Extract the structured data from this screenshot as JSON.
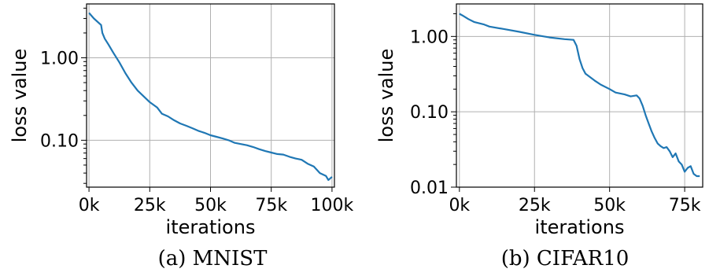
{
  "chart_data": [
    {
      "type": "line",
      "caption": "(a) MNIST",
      "xlabel": "iterations",
      "ylabel": "loss value",
      "yscale": "log",
      "grid": true,
      "xlim": [
        -1000,
        101000
      ],
      "ylim": [
        0.027,
        4.5
      ],
      "xticks": [
        0,
        25000,
        50000,
        75000,
        100000
      ],
      "xtick_labels": [
        "0k",
        "25k",
        "50k",
        "75k",
        "100k"
      ],
      "yticks": [
        1.0,
        0.1
      ],
      "ytick_labels": [
        "1.00",
        "0.10"
      ],
      "series": [
        {
          "color": "#1f77b4",
          "x": [
            0,
            2000,
            5000,
            5500,
            6500,
            8000,
            10000,
            12500,
            15000,
            17500,
            20000,
            22500,
            25000,
            28000,
            30000,
            32500,
            35000,
            37500,
            40000,
            42500,
            45000,
            47500,
            50000,
            52500,
            55000,
            57500,
            60000,
            62500,
            65000,
            67500,
            70000,
            72500,
            75000,
            77500,
            80000,
            82500,
            85000,
            87500,
            90000,
            92500,
            95000,
            97500,
            98500,
            100000
          ],
          "y": [
            3.5,
            3.0,
            2.5,
            2.0,
            1.7,
            1.45,
            1.15,
            0.88,
            0.65,
            0.5,
            0.4,
            0.34,
            0.29,
            0.25,
            0.21,
            0.195,
            0.175,
            0.16,
            0.15,
            0.14,
            0.13,
            0.123,
            0.115,
            0.11,
            0.105,
            0.1,
            0.093,
            0.09,
            0.087,
            0.083,
            0.078,
            0.074,
            0.071,
            0.068,
            0.067,
            0.063,
            0.06,
            0.058,
            0.052,
            0.048,
            0.04,
            0.037,
            0.033,
            0.036
          ]
        }
      ]
    },
    {
      "type": "line",
      "caption": "(b) CIFAR10",
      "xlabel": "iterations",
      "ylabel": "loss value",
      "yscale": "log",
      "grid": true,
      "xlim": [
        -1000,
        81000
      ],
      "ylim": [
        0.01,
        2.7
      ],
      "xticks": [
        0,
        25000,
        50000,
        75000
      ],
      "xtick_labels": [
        "0k",
        "25k",
        "50k",
        "75k"
      ],
      "yticks": [
        1.0,
        0.1,
        0.01
      ],
      "ytick_labels": [
        "1.00",
        "0.10",
        "0.01"
      ],
      "series": [
        {
          "color": "#1f77b4",
          "x": [
            0,
            1000,
            3000,
            5000,
            8000,
            10000,
            15000,
            20000,
            25000,
            30000,
            35000,
            38000,
            39000,
            40000,
            41000,
            42000,
            45000,
            47000,
            50000,
            52000,
            55000,
            57000,
            59000,
            60000,
            61000,
            62000,
            63000,
            64000,
            65000,
            66000,
            67000,
            68000,
            69000,
            70000,
            71000,
            72000,
            73000,
            74000,
            75000,
            76000,
            77000,
            78000,
            79000,
            80000
          ],
          "y": [
            2.0,
            1.9,
            1.7,
            1.55,
            1.45,
            1.35,
            1.25,
            1.15,
            1.05,
            0.97,
            0.92,
            0.9,
            0.75,
            0.5,
            0.38,
            0.32,
            0.26,
            0.23,
            0.2,
            0.18,
            0.17,
            0.16,
            0.165,
            0.15,
            0.12,
            0.09,
            0.07,
            0.055,
            0.045,
            0.038,
            0.035,
            0.033,
            0.034,
            0.03,
            0.025,
            0.028,
            0.022,
            0.02,
            0.016,
            0.018,
            0.019,
            0.015,
            0.014,
            0.014
          ]
        }
      ]
    }
  ]
}
